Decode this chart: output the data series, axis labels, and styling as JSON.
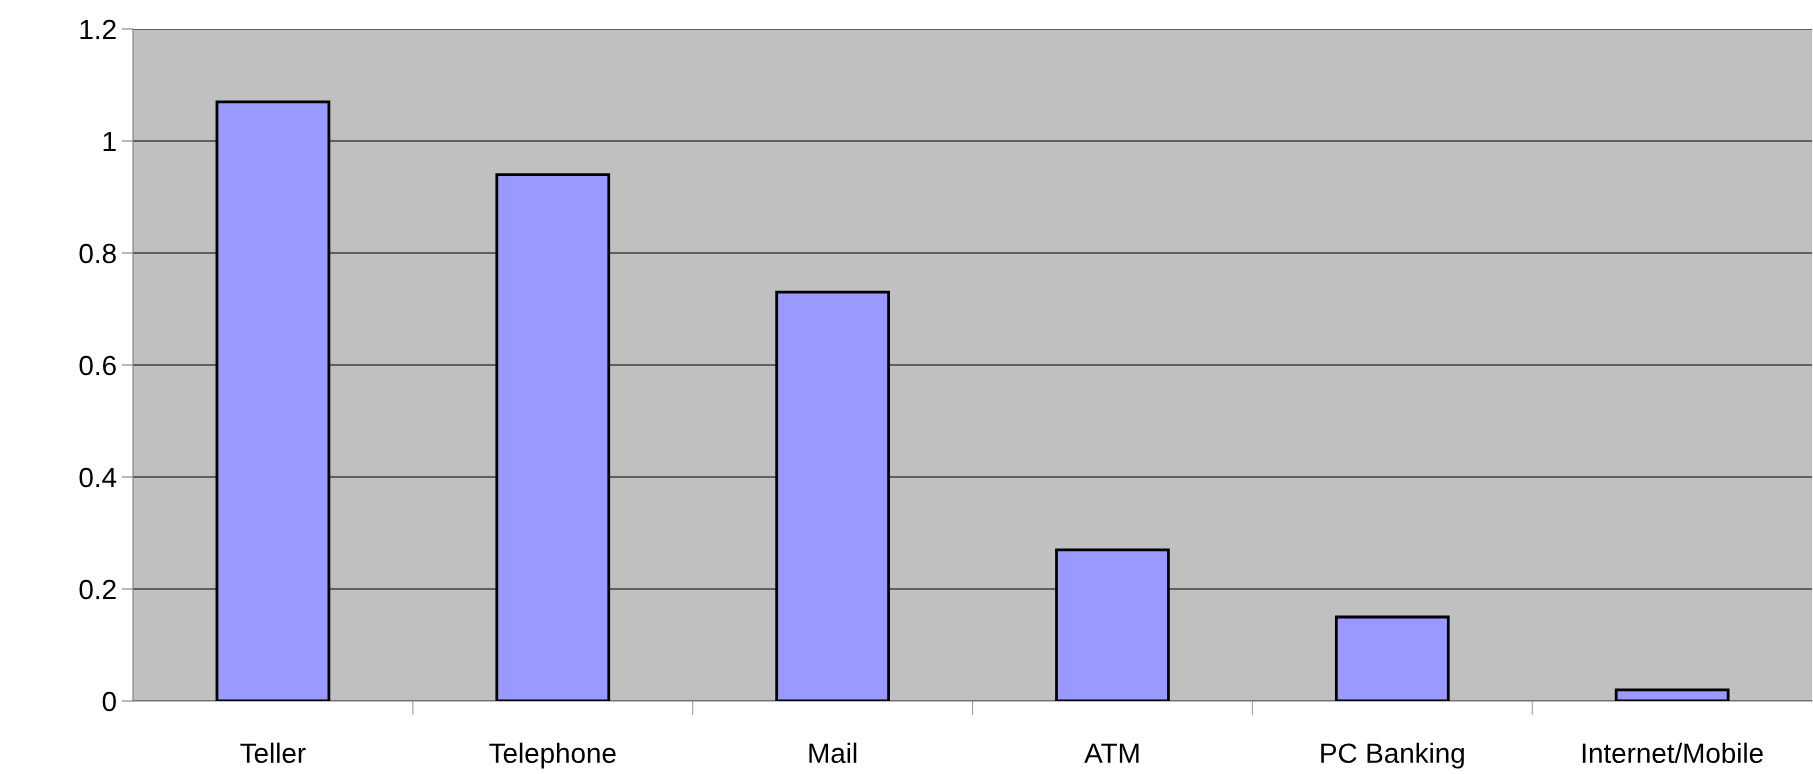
{
  "chart_data": {
    "type": "bar",
    "categories": [
      "Teller",
      "Telephone",
      "Mail",
      "ATM",
      "PC Banking",
      "Internet/Mobile"
    ],
    "values": [
      1.07,
      0.94,
      0.73,
      0.27,
      0.15,
      0.02
    ],
    "color": "#9999ff",
    "ylim": [
      0,
      1.2
    ],
    "yticks": [
      0,
      0.2,
      0.4,
      0.6,
      0.8,
      1,
      1.2
    ],
    "grid": "y",
    "legend": false
  }
}
